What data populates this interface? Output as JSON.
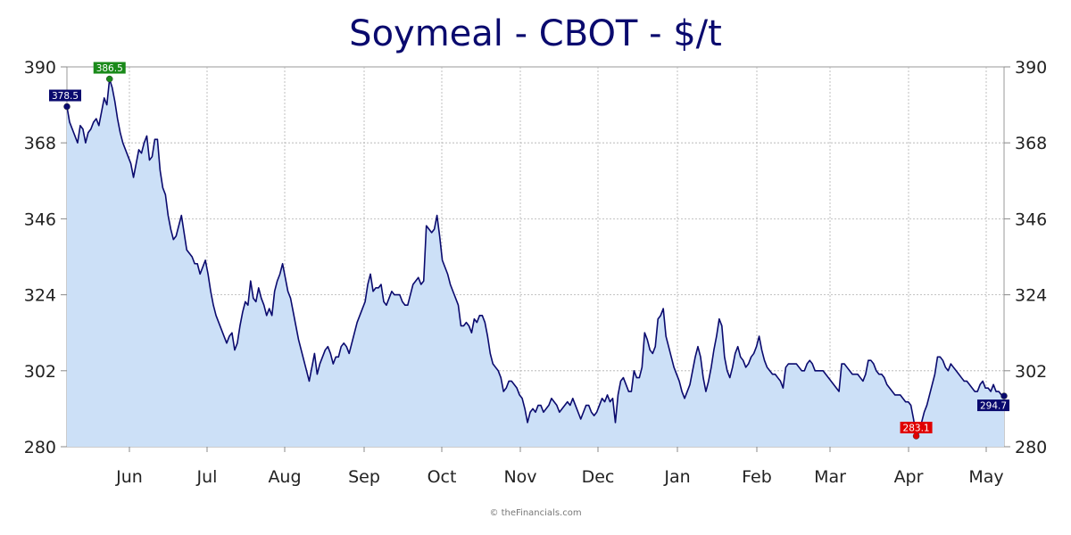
{
  "chart_data": {
    "type": "area",
    "title": "Soymeal - CBOT - $/t",
    "credit": "© theFinancials.com",
    "ylim": [
      280,
      390
    ],
    "y_ticks": [
      280,
      302,
      324,
      346,
      368,
      390
    ],
    "y_tick_labels": [
      "280",
      "302",
      "324",
      "346",
      "368",
      "390"
    ],
    "x_ticks": [
      "Jun",
      "Jul",
      "Aug",
      "Sep",
      "Oct",
      "Nov",
      "Dec",
      "Jan",
      "Feb",
      "Mar",
      "Apr",
      "May"
    ],
    "grid": true,
    "axes": "left and right",
    "colors": {
      "line": "#0a0a6e",
      "fill": "#cce0f7",
      "grid": "#b0b0b0",
      "high": "#1a8a1a",
      "low": "#e00000",
      "label": "#0a0a6e"
    },
    "series": [
      {
        "values": [
          378.5,
          374,
          372,
          370,
          368,
          373,
          372,
          368,
          371,
          372,
          374,
          375,
          373,
          377,
          381,
          379,
          386.5,
          384,
          380,
          375,
          371,
          368,
          366,
          364,
          362,
          358,
          362,
          366,
          365,
          368,
          370,
          363,
          364,
          369,
          369,
          360,
          355,
          353,
          347,
          343,
          340,
          341,
          344,
          347,
          342,
          337,
          336,
          335,
          333,
          333,
          330,
          332,
          334,
          330,
          325,
          321,
          318,
          316,
          314,
          312,
          310,
          312,
          313,
          308,
          310,
          315,
          319,
          322,
          321,
          328,
          323,
          322,
          326,
          323,
          321,
          318,
          320,
          318,
          325,
          328,
          330,
          333,
          329,
          325,
          323,
          319,
          315,
          311,
          308,
          305,
          302,
          299,
          303,
          307,
          301,
          304,
          306,
          308,
          309,
          307,
          304,
          306,
          306,
          309,
          310,
          309,
          307,
          310,
          313,
          316,
          318,
          320,
          322,
          327,
          330,
          325,
          326,
          326,
          327,
          322,
          321,
          323,
          325,
          324,
          324,
          324,
          322,
          321,
          321,
          324,
          327,
          328,
          329,
          327,
          328,
          344,
          343,
          342,
          343,
          347,
          341,
          334,
          332,
          330,
          327,
          325,
          323,
          321,
          315,
          315,
          316,
          315,
          313,
          317,
          316,
          318,
          318,
          316,
          312,
          307,
          304,
          303,
          302,
          300,
          296,
          297,
          299,
          299,
          298,
          297,
          295,
          294,
          291,
          287,
          290,
          291,
          290,
          292,
          292,
          290,
          291,
          292,
          294,
          293,
          292,
          290,
          291,
          292,
          293,
          292,
          294,
          292,
          290,
          288,
          290,
          292,
          292,
          290,
          289,
          290,
          292,
          294,
          293,
          295,
          293,
          294,
          287,
          295,
          299,
          300,
          298,
          296,
          296,
          302,
          300,
          300,
          303,
          313,
          311,
          308,
          307,
          309,
          317,
          318,
          320,
          312,
          309,
          306,
          303,
          301,
          299,
          296,
          294,
          296,
          298,
          302,
          306,
          309,
          306,
          300,
          296,
          299,
          303,
          308,
          312,
          317,
          315,
          306,
          302,
          300,
          303,
          307,
          309,
          306,
          305,
          303,
          304,
          306,
          307,
          309,
          312,
          308,
          305,
          303,
          302,
          301,
          301,
          300,
          299,
          297,
          303,
          304,
          304,
          304,
          304,
          303,
          302,
          302,
          304,
          305,
          304,
          302,
          302,
          302,
          302,
          301,
          300,
          299,
          298,
          297,
          296,
          304,
          304,
          303,
          302,
          301,
          301,
          301,
          300,
          299,
          301,
          305,
          305,
          304,
          302,
          301,
          301,
          300,
          298,
          297,
          296,
          295,
          295,
          295,
          294,
          293,
          293,
          292,
          288,
          283.1,
          284,
          287,
          290,
          292,
          295,
          298,
          301,
          306,
          306,
          305,
          303,
          302,
          304,
          303,
          302,
          301,
          300,
          299,
          299,
          298,
          297,
          296,
          296,
          298,
          299,
          297,
          297,
          296,
          298,
          296,
          296,
          295,
          294.7
        ]
      }
    ],
    "annotations": {
      "start": {
        "label": "378.5",
        "value": 378.5
      },
      "high": {
        "label": "386.5",
        "value": 386.5
      },
      "low": {
        "label": "283.1",
        "value": 283.1
      },
      "last": {
        "label": "294.7",
        "value": 294.7
      }
    }
  }
}
